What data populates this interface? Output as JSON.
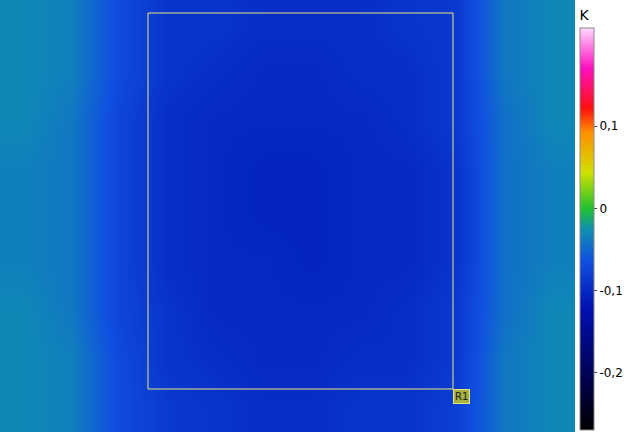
{
  "chart_data": {
    "type": "heatmap",
    "tick_labels": false,
    "xlim": [
      0,
      575
    ],
    "ylim": [
      432,
      0
    ],
    "x": [
      24,
      72,
      120,
      168,
      216,
      264,
      312,
      360,
      408,
      456,
      504,
      552
    ],
    "y": [
      24,
      72,
      120,
      168,
      216,
      264,
      312,
      360,
      408
    ],
    "cells": [
      [
        -0.03,
        -0.035,
        -0.07,
        -0.09,
        -0.09,
        -0.095,
        -0.095,
        -0.095,
        -0.09,
        -0.085,
        -0.04,
        -0.03
      ],
      [
        -0.03,
        -0.035,
        -0.07,
        -0.09,
        -0.095,
        -0.1,
        -0.1,
        -0.095,
        -0.095,
        -0.085,
        -0.04,
        -0.03
      ],
      [
        -0.03,
        -0.04,
        -0.075,
        -0.095,
        -0.1,
        -0.1,
        -0.1,
        -0.1,
        -0.095,
        -0.085,
        -0.045,
        -0.03
      ],
      [
        -0.035,
        -0.04,
        -0.075,
        -0.095,
        -0.1,
        -0.105,
        -0.105,
        -0.1,
        -0.1,
        -0.09,
        -0.045,
        -0.035
      ],
      [
        -0.035,
        -0.04,
        -0.075,
        -0.095,
        -0.1,
        -0.105,
        -0.105,
        -0.1,
        -0.1,
        -0.09,
        -0.045,
        -0.035
      ],
      [
        -0.035,
        -0.04,
        -0.075,
        -0.095,
        -0.1,
        -0.1,
        -0.105,
        -0.1,
        -0.1,
        -0.09,
        -0.045,
        -0.035
      ],
      [
        -0.03,
        -0.04,
        -0.075,
        -0.09,
        -0.1,
        -0.1,
        -0.1,
        -0.1,
        -0.095,
        -0.085,
        -0.045,
        -0.03
      ],
      [
        -0.03,
        -0.035,
        -0.07,
        -0.09,
        -0.095,
        -0.1,
        -0.1,
        -0.095,
        -0.095,
        -0.085,
        -0.04,
        -0.03
      ],
      [
        -0.03,
        -0.035,
        -0.07,
        -0.085,
        -0.09,
        -0.095,
        -0.095,
        -0.09,
        -0.09,
        -0.08,
        -0.04,
        -0.03
      ]
    ],
    "colorbar": {
      "title": "K",
      "range": [
        -0.27,
        0.22
      ],
      "ticks": [
        {
          "value": 0.1,
          "label": "0,1"
        },
        0,
        {
          "value": -0.1,
          "label": "-0,1"
        },
        {
          "value": -0.2,
          "label": "-0,2"
        }
      ]
    },
    "roi": {
      "label": "R1",
      "x0": 148,
      "x1": 453,
      "y0": 13,
      "y1": 389
    }
  }
}
